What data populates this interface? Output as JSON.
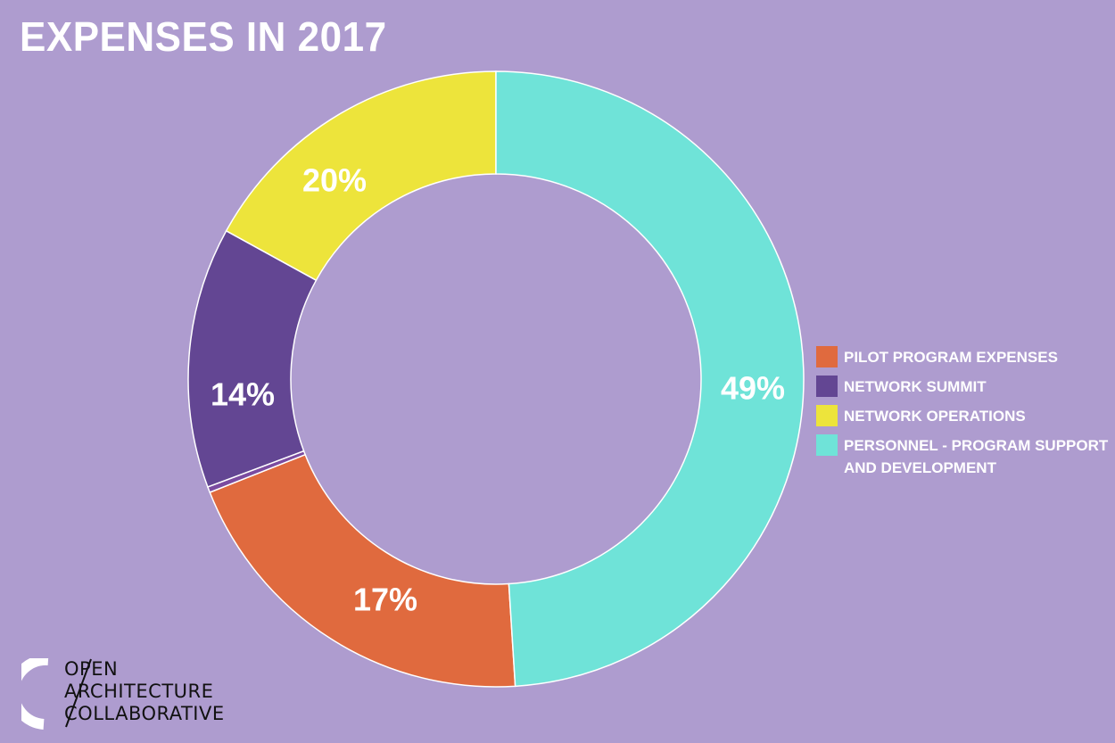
{
  "chart_data": {
    "type": "pie",
    "title": "EXPENSES IN 2017",
    "series": [
      {
        "name": "PILOT PROGRAM EXPENSES",
        "value": 20,
        "label": "20%",
        "color": "#e06a3e"
      },
      {
        "name": "",
        "value": 0.3,
        "label": "",
        "color": "#7b4ba0"
      },
      {
        "name": "NETWORK SUMMIT",
        "value": 13.7,
        "label": "14%",
        "color": "#634693"
      },
      {
        "name": "NETWORK OPERATIONS",
        "value": 17,
        "label": "17%",
        "color": "#ede43b"
      },
      {
        "name": "PERSONNEL - PROGRAM SUPPORT AND DEVELOPMENT",
        "value": 49,
        "label": "49%",
        "color": "#6fe3d8"
      }
    ],
    "legend": [
      {
        "label": "PILOT PROGRAM EXPENSES",
        "color": "#e06a3e"
      },
      {
        "label": "NETWORK SUMMIT",
        "color": "#634693"
      },
      {
        "label": "NETWORK OPERATIONS",
        "color": "#ede43b"
      },
      {
        "label": "PERSONNEL - PROGRAM SUPPORT\nAND DEVELOPMENT",
        "color": "#6fe3d8"
      }
    ],
    "legend_position": "right",
    "donut": true
  },
  "logo": {
    "lines": [
      "OPEN",
      "ARCHITECTURE",
      "COLLABORATIVE"
    ]
  },
  "colors": {
    "background": "#ae9ccf"
  }
}
